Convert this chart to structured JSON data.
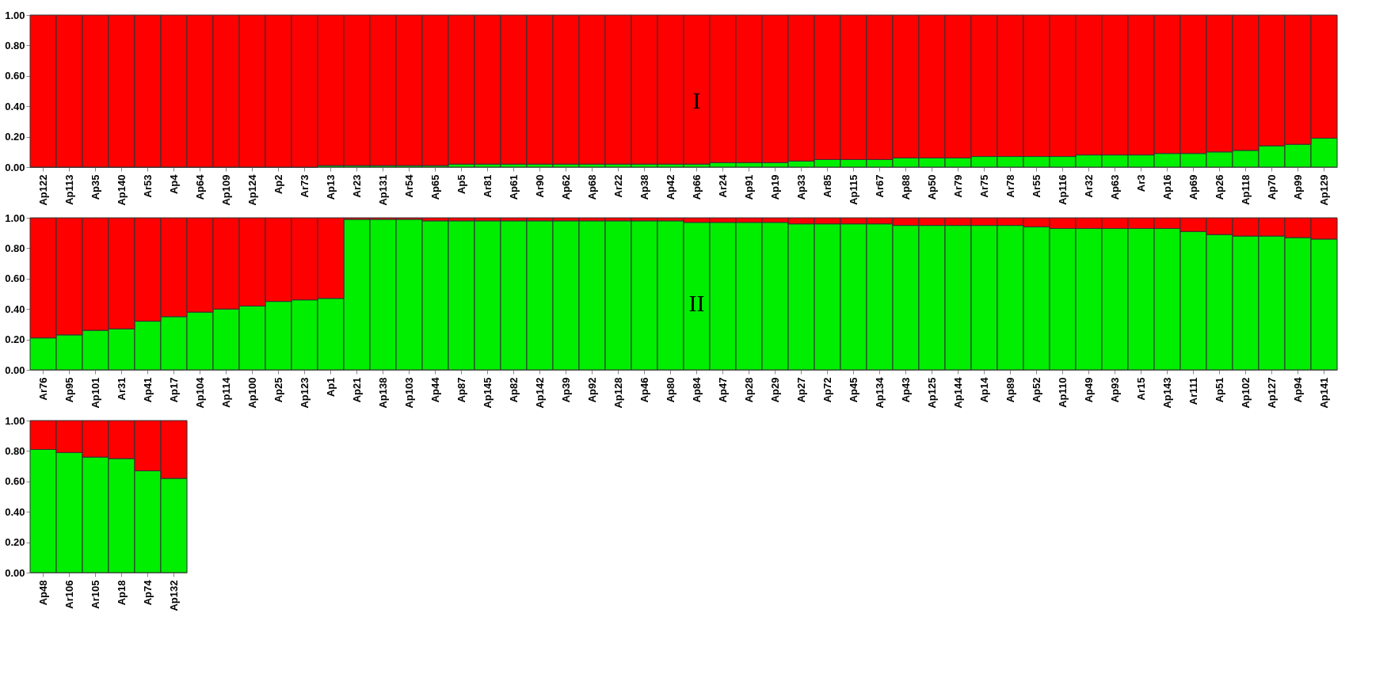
{
  "chart_data": [
    {
      "type": "bar",
      "stacked": true,
      "ylim": [
        0,
        1
      ],
      "yticks": [
        {
          "value": 0,
          "label": "0.00"
        },
        {
          "value": 0.2,
          "label": "0.20"
        },
        {
          "value": 0.4,
          "label": "0.40"
        },
        {
          "value": 0.6,
          "label": "0.60"
        },
        {
          "value": 0.8,
          "label": "0.80"
        },
        {
          "value": 1,
          "label": "1.00"
        }
      ],
      "categories": [
        "Ap122",
        "Ap113",
        "Ap35",
        "Ap140",
        "Ar53",
        "Ap4",
        "Ap64",
        "Ap109",
        "Ap124",
        "Ap2",
        "Ar73",
        "Ap13",
        "Ar23",
        "Ap131",
        "Ar54",
        "Ap65",
        "Ap5",
        "Ar81",
        "Ap61",
        "Ar90",
        "Ap62",
        "Ap68",
        "Ar22",
        "Ap38",
        "Ap42",
        "Ap66",
        "Ar24",
        "Ap91",
        "Ap19",
        "Ap33",
        "Ar85",
        "Ap115",
        "Ar67",
        "Ap88",
        "Ap50",
        "Ar79",
        "Ar75",
        "Ar78",
        "Ar55",
        "Ap116",
        "Ar32",
        "Ap63",
        "Ar3",
        "Ap16",
        "Ap69",
        "Ap26",
        "Ap118",
        "Ap70",
        "Ap99",
        "Ap129"
      ],
      "series": [
        {
          "color": "#00ee00",
          "values": [
            0,
            0,
            0,
            0,
            0,
            0,
            0,
            0,
            0,
            0,
            0,
            0.01,
            0.01,
            0.01,
            0.01,
            0.01,
            0.02,
            0.02,
            0.02,
            0.02,
            0.02,
            0.02,
            0.02,
            0.02,
            0.02,
            0.02,
            0.03,
            0.03,
            0.03,
            0.04,
            0.05,
            0.05,
            0.05,
            0.06,
            0.06,
            0.06,
            0.07,
            0.07,
            0.07,
            0.07,
            0.08,
            0.08,
            0.08,
            0.09,
            0.09,
            0.1,
            0.11,
            0.14,
            0.15,
            0.19
          ]
        },
        {
          "color": "#ff0000",
          "values": [
            1,
            1,
            1,
            1,
            1,
            1,
            1,
            1,
            1,
            1,
            1,
            0.99,
            0.99,
            0.99,
            0.99,
            0.99,
            0.98,
            0.98,
            0.98,
            0.98,
            0.98,
            0.98,
            0.98,
            0.98,
            0.98,
            0.98,
            0.97,
            0.97,
            0.97,
            0.96,
            0.95,
            0.95,
            0.95,
            0.94,
            0.94,
            0.94,
            0.93,
            0.93,
            0.93,
            0.93,
            0.92,
            0.92,
            0.92,
            0.91,
            0.91,
            0.9,
            0.89,
            0.86,
            0.85,
            0.81
          ]
        }
      ],
      "annotations": [
        "I"
      ]
    },
    {
      "type": "bar",
      "stacked": true,
      "ylim": [
        0,
        1
      ],
      "yticks": [
        {
          "value": 0,
          "label": "0.00"
        },
        {
          "value": 0.2,
          "label": "0.20"
        },
        {
          "value": 0.4,
          "label": "0.40"
        },
        {
          "value": 0.6,
          "label": "0.60"
        },
        {
          "value": 0.8,
          "label": "0.80"
        },
        {
          "value": 1,
          "label": "1.00"
        }
      ],
      "categories": [
        "Ar76",
        "Ap95",
        "Ap101",
        "Ar31",
        "Ap41",
        "Ap17",
        "Ap104",
        "Ap114",
        "Ap100",
        "Ap25",
        "Ap123",
        "Ap1",
        "Ap21",
        "Ap138",
        "Ap103",
        "Ap44",
        "Ap87",
        "Ap145",
        "Ap82",
        "Ap142",
        "Ap39",
        "Ap92",
        "Ap128",
        "Ap46",
        "Ap80",
        "Ap84",
        "Ap47",
        "Ap28",
        "Ap29",
        "Ap27",
        "Ap72",
        "Ap45",
        "Ap134",
        "Ap43",
        "Ap125",
        "Ap144",
        "Ap14",
        "Ap89",
        "Ap52",
        "Ap110",
        "Ap49",
        "Ap93",
        "Ar15",
        "Ap143",
        "Ar111",
        "Ap51",
        "Ap102",
        "Ap127",
        "Ap94",
        "Ap141"
      ],
      "series": [
        {
          "color": "#00ee00",
          "values": [
            0.21,
            0.23,
            0.26,
            0.27,
            0.32,
            0.35,
            0.38,
            0.4,
            0.42,
            0.45,
            0.46,
            0.47,
            0.99,
            0.99,
            0.99,
            0.98,
            0.98,
            0.98,
            0.98,
            0.98,
            0.98,
            0.98,
            0.98,
            0.98,
            0.98,
            0.97,
            0.97,
            0.97,
            0.97,
            0.96,
            0.96,
            0.96,
            0.96,
            0.95,
            0.95,
            0.95,
            0.95,
            0.95,
            0.94,
            0.93,
            0.93,
            0.93,
            0.93,
            0.93,
            0.91,
            0.89,
            0.88,
            0.88,
            0.87,
            0.86
          ]
        },
        {
          "color": "#ff0000",
          "values": [
            0.79,
            0.77,
            0.74,
            0.73,
            0.68,
            0.65,
            0.62,
            0.6,
            0.58,
            0.55,
            0.54,
            0.53,
            0.01,
            0.01,
            0.01,
            0.02,
            0.02,
            0.02,
            0.02,
            0.02,
            0.02,
            0.02,
            0.02,
            0.02,
            0.02,
            0.03,
            0.03,
            0.03,
            0.03,
            0.04,
            0.04,
            0.04,
            0.04,
            0.05,
            0.05,
            0.05,
            0.05,
            0.05,
            0.06,
            0.07,
            0.07,
            0.07,
            0.07,
            0.07,
            0.09,
            0.11,
            0.12,
            0.12,
            0.13,
            0.14
          ]
        }
      ],
      "annotations": [
        "II"
      ]
    },
    {
      "type": "bar",
      "stacked": true,
      "ylim": [
        0,
        1
      ],
      "yticks": [
        {
          "value": 0,
          "label": "0.00"
        },
        {
          "value": 0.2,
          "label": "0.20"
        },
        {
          "value": 0.4,
          "label": "0.40"
        },
        {
          "value": 0.6,
          "label": "0.60"
        },
        {
          "value": 0.8,
          "label": "0.80"
        },
        {
          "value": 1,
          "label": "1.00"
        }
      ],
      "categories": [
        "Ap48",
        "Ar106",
        "Ar105",
        "Ap18",
        "Ap74",
        "Ap132"
      ],
      "series": [
        {
          "color": "#00ee00",
          "values": [
            0.81,
            0.79,
            0.76,
            0.75,
            0.67,
            0.62
          ]
        },
        {
          "color": "#ff0000",
          "values": [
            0.19,
            0.21,
            0.24,
            0.25,
            0.33,
            0.38
          ]
        }
      ]
    }
  ]
}
